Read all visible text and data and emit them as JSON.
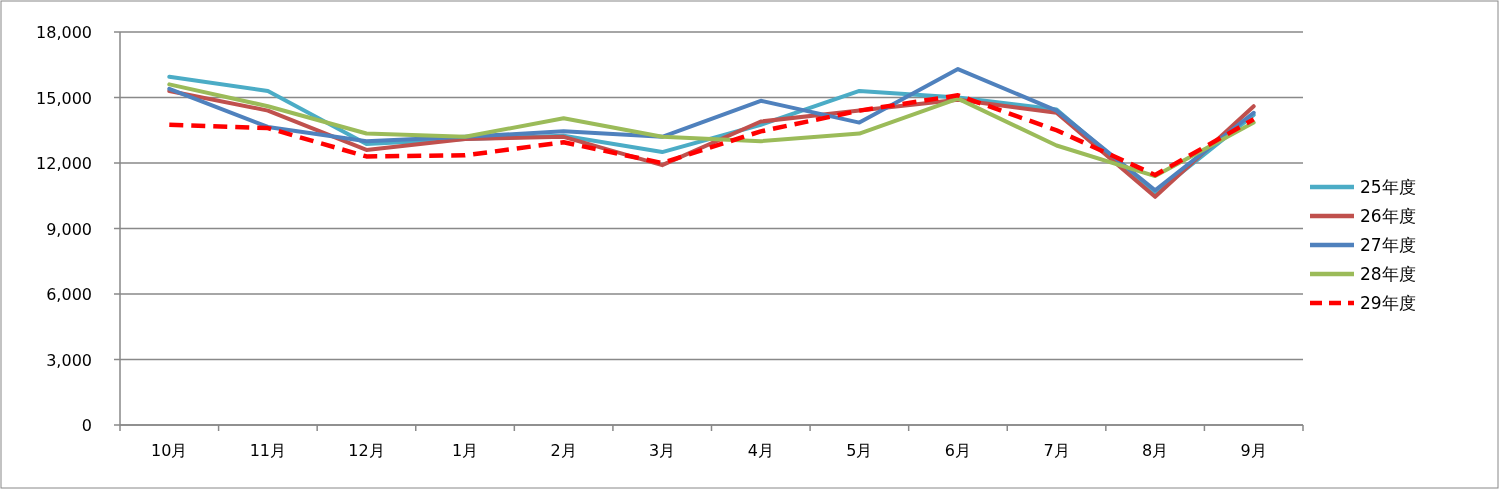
{
  "chart_data": {
    "type": "line",
    "categories": [
      "10月",
      "11月",
      "12月",
      "1月",
      "2月",
      "3月",
      "4月",
      "5月",
      "6月",
      "7月",
      "8月",
      "9月"
    ],
    "ylim": [
      0,
      18000
    ],
    "yticks": [
      {
        "value": 0,
        "label": "0"
      },
      {
        "value": 3000,
        "label": "3,000"
      },
      {
        "value": 6000,
        "label": "6,000"
      },
      {
        "value": 9000,
        "label": "9,000"
      },
      {
        "value": 12000,
        "label": "12,000"
      },
      {
        "value": 15000,
        "label": "15,000"
      },
      {
        "value": 18000,
        "label": "18,000"
      }
    ],
    "grid": "y",
    "legend": "right",
    "marker": "none",
    "series": [
      {
        "name": "25年度",
        "color": "#4bacc6",
        "line_style": "solid",
        "values": [
          15950,
          15300,
          12870,
          13100,
          13250,
          12500,
          13750,
          15300,
          15000,
          14450,
          10600,
          14200
        ]
      },
      {
        "name": "26年度",
        "color": "#c0504d",
        "line_style": "solid",
        "values": [
          15300,
          14400,
          12600,
          13100,
          13200,
          11900,
          13900,
          14400,
          14900,
          14300,
          10450,
          14600
        ]
      },
      {
        "name": "27年度",
        "color": "#4f81bd",
        "line_style": "solid",
        "values": [
          15400,
          13650,
          13000,
          13200,
          13450,
          13200,
          14850,
          13850,
          16300,
          14400,
          10750,
          14300
        ]
      },
      {
        "name": "28年度",
        "color": "#9bbb59",
        "line_style": "solid",
        "values": [
          15600,
          14600,
          13350,
          13200,
          14050,
          13200,
          13000,
          13350,
          14950,
          12800,
          11400,
          13850
        ]
      },
      {
        "name": "29年度",
        "color": "#ff0000",
        "line_style": "dashed",
        "values": [
          13750,
          13600,
          12300,
          12350,
          12950,
          12000,
          13450,
          14400,
          15100,
          13500,
          11450,
          14000
        ]
      }
    ]
  }
}
